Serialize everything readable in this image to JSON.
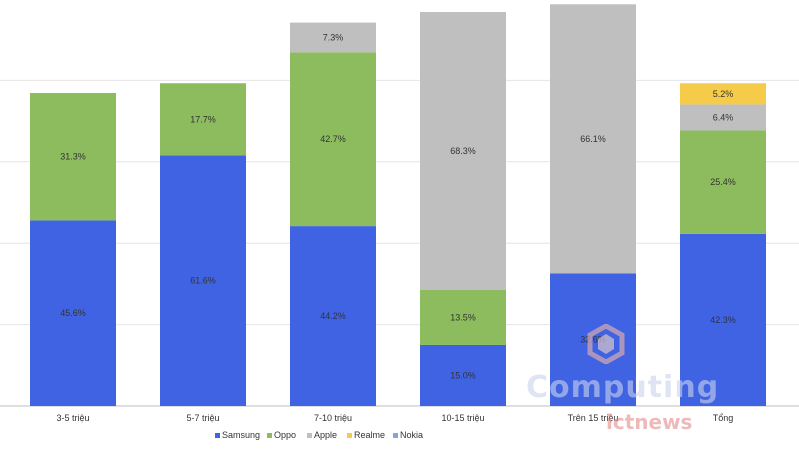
{
  "chart_data": {
    "type": "bar",
    "stacked": true,
    "categories": [
      "3-5 triệu",
      "5-7 triệu",
      "7-10 triệu",
      "10-15 triệu",
      "Trên 15 triệu",
      "Tổng"
    ],
    "series": [
      {
        "name": "Samsung",
        "color": "#3f63e3",
        "values": [
          45.6,
          61.6,
          44.2,
          15.0,
          32.6,
          42.3
        ],
        "labels": [
          "45.6%",
          "61.6%",
          "44.2%",
          "15.0%",
          "32.6%",
          "42.3%"
        ]
      },
      {
        "name": "Oppo",
        "color": "#8cbc5e",
        "values": [
          31.3,
          17.7,
          42.7,
          13.5,
          0,
          25.4
        ],
        "labels": [
          "31.3%",
          "17.7%",
          "42.7%",
          "13.5%",
          "",
          "25.4%"
        ]
      },
      {
        "name": "Apple",
        "color": "#bfbfbf",
        "values": [
          0,
          0,
          7.3,
          68.3,
          66.1,
          6.4
        ],
        "labels": [
          "",
          "",
          "7.3%",
          "68.3%",
          "66.1%",
          "6.4%"
        ]
      },
      {
        "name": "Realme",
        "color": "#f6cb4a",
        "values": [
          0,
          0,
          0,
          0,
          0,
          5.2
        ],
        "labels": [
          "",
          "",
          "",
          "",
          "",
          "5.2%"
        ]
      },
      {
        "name": "Nokia",
        "color": "#7fa7d6",
        "values": [
          0,
          0,
          0,
          0,
          0,
          0
        ],
        "labels": [
          "",
          "",
          "",
          "",
          "",
          ""
        ]
      }
    ],
    "legend_position": "bottom",
    "grid": true,
    "gridlines_at": [
      20,
      40,
      60,
      80
    ],
    "ylim": [
      0,
      100
    ]
  },
  "watermark": {
    "line1": "Computing",
    "line2": "ictnews"
  }
}
